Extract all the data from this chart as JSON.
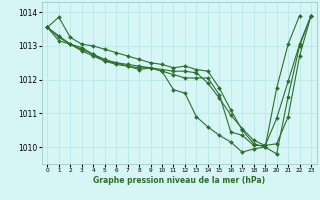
{
  "title": "Graphe pression niveau de la mer (hPa)",
  "bg_color": "#d6f5f5",
  "grid_color": "#b8e8e8",
  "line_color": "#2d6e2d",
  "marker": "D",
  "marker_size": 2.0,
  "linewidth": 0.8,
  "xlim": [
    -0.5,
    23.5
  ],
  "ylim": [
    1009.5,
    1014.3
  ],
  "yticks": [
    1010,
    1011,
    1012,
    1013,
    1014
  ],
  "xticks": [
    0,
    1,
    2,
    3,
    4,
    5,
    6,
    7,
    8,
    9,
    10,
    11,
    12,
    13,
    14,
    15,
    16,
    17,
    18,
    19,
    20,
    21,
    22,
    23
  ],
  "series": [
    [
      1013.55,
      1013.85,
      1013.25,
      1013.05,
      1013.0,
      1012.9,
      1012.8,
      1012.7,
      1012.6,
      1012.5,
      1012.45,
      1012.35,
      1012.4,
      1012.3,
      1012.25,
      1011.75,
      1011.1,
      1010.5,
      1010.1,
      1010.0,
      1009.8,
      1011.5,
      1013.0,
      1013.9
    ],
    [
      1013.55,
      1013.3,
      1013.05,
      1012.85,
      1012.7,
      1012.55,
      1012.45,
      1012.4,
      1012.35,
      1012.35,
      1012.3,
      1012.25,
      1012.25,
      1012.2,
      1011.9,
      1011.45,
      1010.95,
      1010.55,
      1010.2,
      1010.05,
      1010.1,
      1010.9,
      1012.7,
      1013.9
    ],
    [
      1013.55,
      1013.25,
      1013.05,
      1012.95,
      1012.75,
      1012.6,
      1012.5,
      1012.4,
      1012.3,
      1012.35,
      1012.25,
      1011.7,
      1011.6,
      1010.9,
      1010.6,
      1010.35,
      1010.15,
      1009.85,
      1009.95,
      1010.0,
      1011.75,
      1013.05,
      1013.9,
      null
    ],
    [
      1013.55,
      1013.15,
      1013.05,
      1012.9,
      1012.75,
      1012.55,
      1012.5,
      1012.45,
      1012.4,
      1012.35,
      1012.25,
      1012.15,
      1012.05,
      1012.05,
      1012.05,
      1011.55,
      1010.45,
      1010.35,
      1010.05,
      1010.05,
      1010.85,
      1011.95,
      1013.05,
      1013.9
    ]
  ]
}
